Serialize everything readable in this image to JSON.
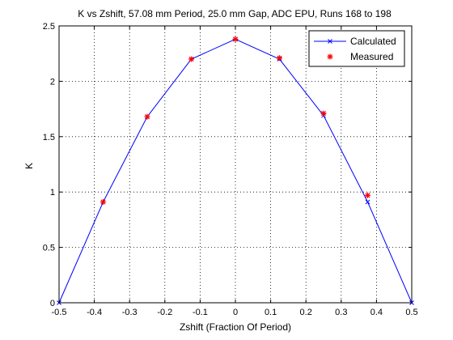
{
  "chart_data": {
    "type": "line",
    "title": "K vs Zshift, 57.08 mm Period, 25.0 mm Gap, ADC EPU, Runs 168 to 198",
    "xlabel": "Zshift (Fraction Of Period)",
    "ylabel": "K",
    "xlim": [
      -0.5,
      0.5
    ],
    "ylim": [
      0,
      2.5
    ],
    "x_ticks": [
      "-0.5",
      "-0.4",
      "-0.3",
      "-0.2",
      "-0.1",
      "0",
      "0.1",
      "0.2",
      "0.3",
      "0.4",
      "0.5"
    ],
    "y_ticks": [
      "0",
      "0.5",
      "1",
      "1.5",
      "2",
      "2.5"
    ],
    "grid": true,
    "legend_position": "top-right",
    "series": [
      {
        "name": "Calculated",
        "style": "line-x",
        "color": "#0000ff",
        "x": [
          -0.5,
          -0.375,
          -0.25,
          -0.125,
          0,
          0.125,
          0.25,
          0.375,
          0.5
        ],
        "y": [
          0.0,
          0.91,
          1.68,
          2.2,
          2.38,
          2.2,
          1.69,
          0.91,
          0.0
        ]
      },
      {
        "name": "Measured",
        "style": "star",
        "color": "#ff0000",
        "x": [
          -0.375,
          -0.25,
          -0.125,
          0,
          0.125,
          0.25,
          0.375
        ],
        "y": [
          0.91,
          1.68,
          2.2,
          2.38,
          2.21,
          1.71,
          0.97
        ]
      }
    ]
  }
}
